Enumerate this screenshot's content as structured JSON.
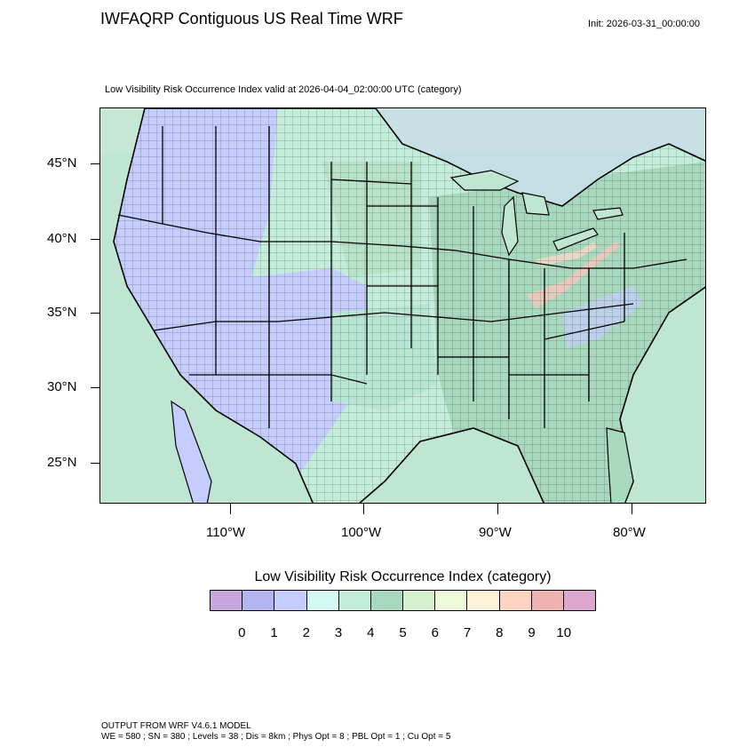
{
  "header": {
    "title": "IWFAQRP Contiguous US Real Time WRF",
    "init": "Init: 2026-03-31_00:00:00"
  },
  "map": {
    "subtitle": "Low Visibility Risk Occurrence Index valid at 2026-04-04_02:00:00 UTC   (category)",
    "lat_labels": [
      "45°N",
      "40°N",
      "35°N",
      "30°N",
      "25°N"
    ],
    "lon_labels": [
      "110°W",
      "100°W",
      "90°W",
      "80°W"
    ]
  },
  "legend": {
    "title": "Low Visibility Risk Occurrence Index  (category)",
    "labels": [
      "0",
      "1",
      "2",
      "3",
      "4",
      "5",
      "6",
      "7",
      "8",
      "9",
      "10"
    ],
    "colors": [
      "#c9a6de",
      "#b3b5f1",
      "#c4cdfd",
      "#d4f8f4",
      "#c4ecdb",
      "#a8d8bd",
      "#d4f0cc",
      "#eefad8",
      "#fdf3d8",
      "#fdd3c1",
      "#eeb2b1",
      "#dca7cf"
    ]
  },
  "footer": {
    "line1": "OUTPUT FROM WRF V4.6.1 MODEL",
    "line2": "WE = 580 ; SN = 380 ; Levels = 38 ; Dis = 8km ; Phys Opt = 8 ; PBL Opt = 1 ; Cu Opt = 5"
  }
}
